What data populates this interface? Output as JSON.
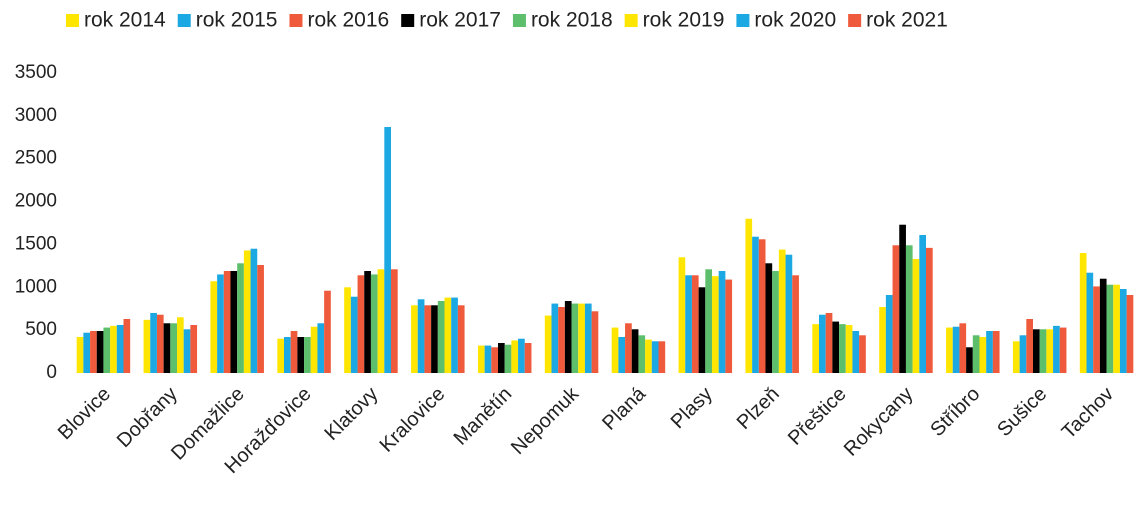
{
  "chart_data": {
    "type": "bar",
    "categories": [
      "Blovice",
      "Dobřany",
      "Domažlice",
      "Horažďovice",
      "Klatovy",
      "Kralovice",
      "Manětín",
      "Nepomuk",
      "Planá",
      "Plasy",
      "Plzeň",
      "Přeštice",
      "Rokycany",
      "Stříbro",
      "Sušice",
      "Tachov"
    ],
    "series": [
      {
        "name": "rok 2014",
        "color": "#ffe600",
        "values": [
          420,
          620,
          1070,
          400,
          1000,
          790,
          320,
          670,
          530,
          1350,
          1800,
          570,
          770,
          530,
          370,
          1400
        ]
      },
      {
        "name": "rok 2015",
        "color": "#1ca8e2",
        "values": [
          470,
          700,
          1150,
          420,
          890,
          860,
          320,
          810,
          420,
          1140,
          1590,
          680,
          910,
          540,
          440,
          1170
        ]
      },
      {
        "name": "rok 2016",
        "color": "#f05a3c",
        "values": [
          490,
          680,
          1190,
          490,
          1140,
          790,
          300,
          770,
          580,
          1140,
          1560,
          700,
          1490,
          580,
          630,
          1010
        ]
      },
      {
        "name": "rok 2017",
        "color": "#000000",
        "values": [
          490,
          580,
          1190,
          420,
          1190,
          790,
          350,
          840,
          510,
          1000,
          1280,
          600,
          1730,
          300,
          510,
          1100
        ]
      },
      {
        "name": "rok 2018",
        "color": "#5dbf6c",
        "values": [
          530,
          580,
          1280,
          420,
          1150,
          840,
          330,
          810,
          440,
          1210,
          1190,
          570,
          1490,
          440,
          510,
          1030
        ]
      },
      {
        "name": "rok 2019",
        "color": "#ffe600",
        "values": [
          550,
          650,
          1430,
          540,
          1210,
          880,
          380,
          810,
          390,
          1130,
          1440,
          560,
          1330,
          420,
          510,
          1030
        ]
      },
      {
        "name": "rok 2020",
        "color": "#1ca8e2",
        "values": [
          560,
          510,
          1450,
          580,
          2870,
          880,
          400,
          810,
          370,
          1190,
          1380,
          490,
          1610,
          490,
          550,
          980
        ]
      },
      {
        "name": "rok 2021",
        "color": "#f05a3c",
        "values": [
          630,
          560,
          1260,
          960,
          1210,
          790,
          350,
          720,
          370,
          1090,
          1140,
          440,
          1460,
          490,
          530,
          910
        ]
      }
    ],
    "ylim": [
      0,
      3500
    ],
    "yticks": [
      0,
      500,
      1000,
      1500,
      2000,
      2500,
      3000,
      3500
    ],
    "grid": false
  }
}
